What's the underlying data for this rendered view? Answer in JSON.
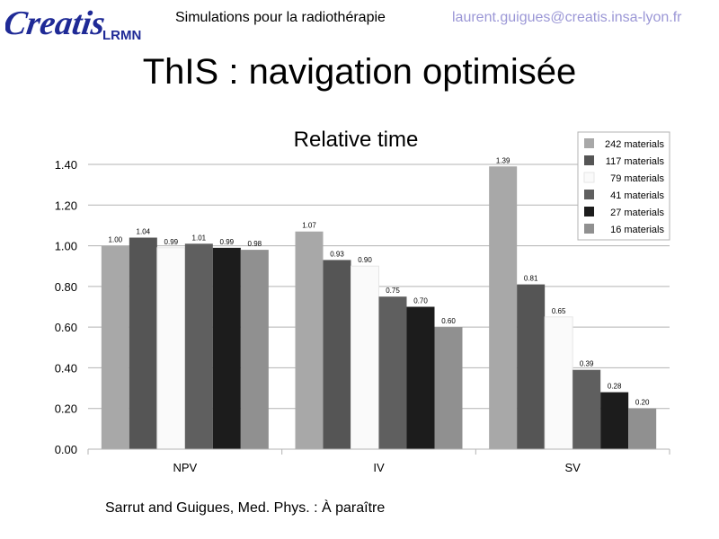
{
  "header": {
    "logo_text": "Creatis",
    "logo_subtext": "LRMN",
    "subject": "Simulations pour la radiothérapie",
    "email": "laurent.guigues@creatis.insa-lyon.fr"
  },
  "slide": {
    "title": "ThIS : navigation optimisée",
    "citation": "Sarrut and Guigues, Med. Phys. : À paraître"
  },
  "colors": {
    "email": "#9b97d6",
    "series": [
      "#a8a8a8",
      "#555555",
      "#fafafa",
      "#5f5f5f",
      "#1c1c1c",
      "#909090"
    ]
  },
  "chart_data": {
    "type": "bar",
    "title": "Relative time",
    "xlabel": "",
    "ylabel": "",
    "categories": [
      "NPV",
      "IV",
      "SV"
    ],
    "ylim": [
      0,
      1.4
    ],
    "yticks": [
      "0.00",
      "0.20",
      "0.40",
      "0.60",
      "0.80",
      "1.00",
      "1.20",
      "1.40"
    ],
    "grid": true,
    "legend_position": "top-right",
    "series": [
      {
        "name": "242 materials",
        "values": [
          1.0,
          1.07,
          1.39
        ],
        "labels": [
          "1.00",
          "1.07",
          "1.39"
        ]
      },
      {
        "name": "117 materials",
        "values": [
          1.04,
          0.93,
          0.81
        ],
        "labels": [
          "1.04",
          "0.93",
          "0.81"
        ]
      },
      {
        "name": "79 materials",
        "values": [
          0.99,
          0.9,
          0.65
        ],
        "labels": [
          "0.99",
          "0.90",
          "0.65"
        ]
      },
      {
        "name": "41 materials",
        "values": [
          1.01,
          0.75,
          0.39
        ],
        "labels": [
          "1.01",
          "0.75",
          "0.39"
        ]
      },
      {
        "name": "27 materials",
        "values": [
          0.99,
          0.7,
          0.28
        ],
        "labels": [
          "0.99",
          "0.70",
          "0.28"
        ]
      },
      {
        "name": "16 materials",
        "values": [
          0.98,
          0.6,
          0.2
        ],
        "labels": [
          "0.98",
          "0.60",
          "0.20"
        ]
      }
    ]
  }
}
